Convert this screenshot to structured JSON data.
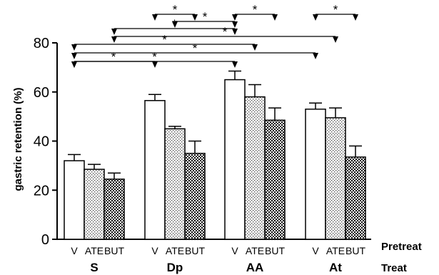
{
  "chart_data": {
    "type": "bar",
    "ylabel": "gastric retention (%)",
    "ylim": [
      0,
      80
    ],
    "yticks": [
      0,
      20,
      40,
      60,
      80
    ],
    "pretreat_label": "Pretreat",
    "treat_label": "Treat",
    "groups": [
      {
        "name": "S",
        "bars": [
          {
            "label": "V",
            "value": 32,
            "error": 2.5,
            "pattern": "white"
          },
          {
            "label": "ATE",
            "value": 28.5,
            "error": 2,
            "pattern": "dots"
          },
          {
            "label": "BUT",
            "value": 24.5,
            "error": 2.5,
            "pattern": "checker"
          }
        ]
      },
      {
        "name": "Dp",
        "bars": [
          {
            "label": "V",
            "value": 56.5,
            "error": 2.5,
            "pattern": "white"
          },
          {
            "label": "ATE",
            "value": 45,
            "error": 1,
            "pattern": "dots"
          },
          {
            "label": "BUT",
            "value": 35,
            "error": 5,
            "pattern": "checker"
          }
        ]
      },
      {
        "name": "AA",
        "bars": [
          {
            "label": "V",
            "value": 65,
            "error": 3.5,
            "pattern": "white"
          },
          {
            "label": "ATE",
            "value": 58,
            "error": 5,
            "pattern": "dots"
          },
          {
            "label": "BUT",
            "value": 48.5,
            "error": 5,
            "pattern": "checker"
          }
        ]
      },
      {
        "name": "At",
        "bars": [
          {
            "label": "V",
            "value": 53,
            "error": 2.5,
            "pattern": "white"
          },
          {
            "label": "ATE",
            "value": 49.5,
            "error": 4,
            "pattern": "dots"
          },
          {
            "label": "BUT",
            "value": 33.5,
            "error": 4.5,
            "pattern": "checker"
          }
        ]
      }
    ],
    "comparisons": [
      {
        "from": [
          1,
          0
        ],
        "to": [
          1,
          2
        ],
        "star": "*"
      },
      {
        "from": [
          2,
          0
        ],
        "to": [
          2,
          2
        ],
        "star": "*"
      },
      {
        "from": [
          3,
          0
        ],
        "to": [
          3,
          2
        ],
        "star": "*"
      },
      {
        "from": [
          1,
          1
        ],
        "to": [
          2,
          0
        ],
        "star": "*"
      },
      {
        "from": [
          0,
          2
        ],
        "to": [
          2,
          0
        ],
        "star": "*"
      },
      {
        "from": [
          0,
          2
        ],
        "to": [
          3,
          1
        ],
        "star": "*"
      },
      {
        "from": [
          0,
          0
        ],
        "to": [
          2,
          1
        ],
        "star": "*"
      },
      {
        "from": [
          0,
          0
        ],
        "to": [
          3,
          0
        ],
        "star": "*"
      },
      {
        "from": [
          0,
          0
        ],
        "to": [
          2,
          0
        ],
        "star": "*"
      },
      {
        "from": [
          0,
          0
        ],
        "to": [
          1,
          0
        ],
        "star": "*"
      }
    ]
  }
}
